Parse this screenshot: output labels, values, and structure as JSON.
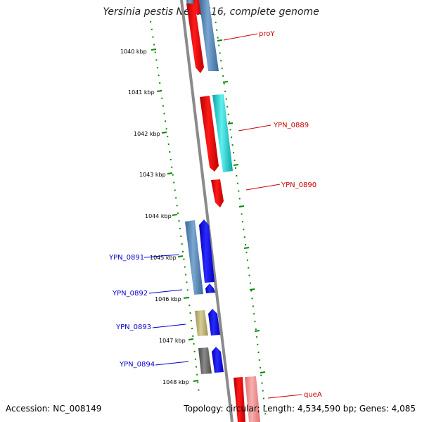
{
  "title": "Yersinia pestis Nepal516, complete genome",
  "footer": {
    "accession": "Accession: NC_008149",
    "topology": "Topology: circular; Length: 4,534,590 bp; Genes: 4,085"
  },
  "colors": {
    "red": "#ff0000",
    "steelblue": "#4f83b5",
    "cyan": "#1ccfcf",
    "blue": "#0000ff",
    "khaki": "#b7ae6b",
    "gray": "#6b6b6b",
    "salmon": "#f08a8a",
    "ruler": "#008000",
    "backbone": "#808080",
    "label_red": "#cc0000",
    "label_blue": "#0000cc"
  },
  "ticks": [
    "1040 kbp",
    "1041 kbp",
    "1042 kbp",
    "1043 kbp",
    "1044 kbp",
    "1045 kbp",
    "1046 kbp",
    "1047 kbp",
    "1048 kbp"
  ],
  "genes": [
    {
      "name": "proY",
      "color_key": "red"
    },
    {
      "name": "YPN_0889",
      "color_key": "cyan"
    },
    {
      "name": "YPN_0890",
      "color_key": "red"
    },
    {
      "name": "YPN_0891",
      "color_key": "blue"
    },
    {
      "name": "YPN_0892",
      "color_key": "blue"
    },
    {
      "name": "YPN_0893",
      "color_key": "blue"
    },
    {
      "name": "YPN_0894",
      "color_key": "blue"
    },
    {
      "name": "queA",
      "color_key": "red"
    }
  ]
}
